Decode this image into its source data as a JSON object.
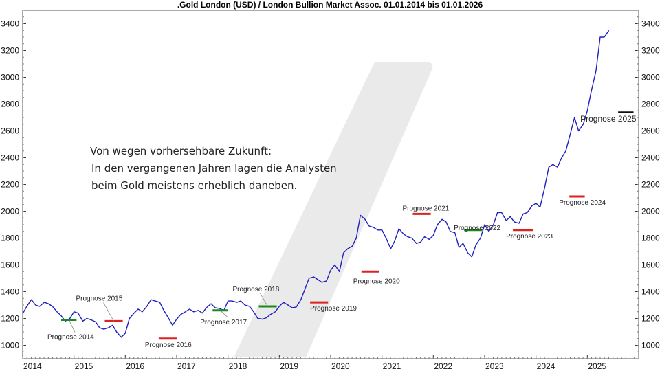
{
  "chart_data": {
    "type": "line",
    "title": ".Gold London (USD) / London Bullion Market Assoc. 01.01.2014 bis 01.01.2026",
    "ylim": [
      900,
      3500
    ],
    "xlim": [
      2014.0,
      2026.0
    ],
    "yticks": [
      1000,
      1200,
      1400,
      1600,
      1800,
      2000,
      2200,
      2400,
      2600,
      2800,
      3000,
      3200,
      3400
    ],
    "xticks": [
      "2014",
      "2015",
      "2016",
      "2017",
      "2018",
      "2019",
      "2020",
      "2021",
      "2022",
      "2023",
      "2024",
      "2025"
    ],
    "grid": false,
    "axes_on_both_sides": true,
    "colors": {
      "series": "#1f1fbf",
      "prognose_hit": "#1a8a1a",
      "prognose_miss": "#dd2222",
      "prognose_current": "#111111",
      "watermark": "#e6e6e6"
    },
    "series": [
      {
        "x": [
          2014.0,
          2014.08,
          2014.17,
          2014.25,
          2014.33,
          2014.42,
          2014.5,
          2014.58,
          2014.67,
          2014.75,
          2014.83,
          2014.92,
          2015.0,
          2015.08,
          2015.17,
          2015.25,
          2015.33,
          2015.42,
          2015.5,
          2015.58,
          2015.67,
          2015.75,
          2015.83,
          2015.92,
          2016.0,
          2016.08,
          2016.17,
          2016.25,
          2016.33,
          2016.42,
          2016.5,
          2016.58,
          2016.67,
          2016.75,
          2016.83,
          2016.92,
          2017.0,
          2017.08,
          2017.17,
          2017.25,
          2017.33,
          2017.42,
          2017.5,
          2017.58,
          2017.67,
          2017.75,
          2017.83,
          2017.92,
          2018.0,
          2018.08,
          2018.17,
          2018.25,
          2018.33,
          2018.42,
          2018.5,
          2018.58,
          2018.67,
          2018.75,
          2018.83,
          2018.92,
          2019.0,
          2019.08,
          2019.17,
          2019.25,
          2019.33,
          2019.42,
          2019.5,
          2019.58,
          2019.67,
          2019.75,
          2019.83,
          2019.92,
          2020.0,
          2020.08,
          2020.17,
          2020.25,
          2020.33,
          2020.42,
          2020.5,
          2020.58,
          2020.67,
          2020.75,
          2020.83,
          2020.92,
          2021.0,
          2021.08,
          2021.17,
          2021.25,
          2021.33,
          2021.42,
          2021.5,
          2021.58,
          2021.67,
          2021.75,
          2021.83,
          2021.92,
          2022.0,
          2022.08,
          2022.17,
          2022.25,
          2022.33,
          2022.42,
          2022.5,
          2022.58,
          2022.67,
          2022.75,
          2022.83,
          2022.92,
          2023.0,
          2023.08,
          2023.17,
          2023.25,
          2023.33,
          2023.42,
          2023.5,
          2023.58,
          2023.67,
          2023.75,
          2023.83,
          2023.92,
          2024.0,
          2024.08,
          2024.17,
          2024.25,
          2024.33,
          2024.42,
          2024.5,
          2024.58,
          2024.67,
          2024.75,
          2024.83,
          2024.92,
          2025.0,
          2025.08,
          2025.17,
          2025.25,
          2025.33,
          2025.42
        ],
        "y": [
          1235,
          1290,
          1340,
          1300,
          1290,
          1320,
          1310,
          1290,
          1250,
          1220,
          1180,
          1200,
          1250,
          1240,
          1180,
          1200,
          1190,
          1175,
          1130,
          1120,
          1130,
          1150,
          1100,
          1060,
          1090,
          1200,
          1240,
          1270,
          1250,
          1290,
          1340,
          1330,
          1320,
          1260,
          1210,
          1150,
          1195,
          1230,
          1250,
          1270,
          1250,
          1260,
          1240,
          1280,
          1310,
          1280,
          1275,
          1260,
          1330,
          1330,
          1320,
          1330,
          1300,
          1290,
          1250,
          1200,
          1195,
          1205,
          1230,
          1250,
          1290,
          1320,
          1300,
          1280,
          1285,
          1340,
          1420,
          1500,
          1510,
          1490,
          1470,
          1480,
          1560,
          1600,
          1550,
          1690,
          1720,
          1740,
          1800,
          1970,
          1940,
          1890,
          1880,
          1860,
          1860,
          1800,
          1720,
          1780,
          1870,
          1830,
          1810,
          1800,
          1760,
          1770,
          1810,
          1790,
          1820,
          1900,
          1940,
          1920,
          1850,
          1840,
          1730,
          1760,
          1690,
          1660,
          1750,
          1800,
          1900,
          1850,
          1900,
          1990,
          1990,
          1930,
          1960,
          1920,
          1910,
          1980,
          1990,
          2040,
          2060,
          2030,
          2180,
          2330,
          2350,
          2330,
          2400,
          2450,
          2580,
          2700,
          2600,
          2650,
          2750,
          2900,
          3050,
          3300,
          3300,
          3350
        ]
      }
    ],
    "annotations": [
      {
        "label": "Prognose 2014",
        "x0": 2014.75,
        "x1": 2015.05,
        "y": 1190,
        "status": "hit"
      },
      {
        "label": "Prognose 2015",
        "x0": 2015.6,
        "x1": 2015.95,
        "y": 1180,
        "status": "miss"
      },
      {
        "label": "Prognose 2016",
        "x0": 2016.65,
        "x1": 2017.0,
        "y": 1050,
        "status": "miss"
      },
      {
        "label": "Prognose 2017",
        "x0": 2017.7,
        "x1": 2018.0,
        "y": 1260,
        "status": "hit"
      },
      {
        "label": "Prognose 2018",
        "x0": 2018.6,
        "x1": 2018.95,
        "y": 1290,
        "status": "hit"
      },
      {
        "label": "Prognose 2019",
        "x0": 2019.6,
        "x1": 2019.95,
        "y": 1320,
        "status": "miss"
      },
      {
        "label": "Prognose 2020",
        "x0": 2020.6,
        "x1": 2020.95,
        "y": 1550,
        "status": "miss"
      },
      {
        "label": "Prognose 2021",
        "x0": 2021.6,
        "x1": 2021.95,
        "y": 1980,
        "status": "miss"
      },
      {
        "label": "Prognose 2022",
        "x0": 2022.6,
        "x1": 2022.95,
        "y": 1860,
        "status": "hit"
      },
      {
        "label": "Prognose 2023",
        "x0": 2023.55,
        "x1": 2023.95,
        "y": 1860,
        "status": "miss"
      },
      {
        "label": "Prognose 2024",
        "x0": 2024.65,
        "x1": 2024.95,
        "y": 2110,
        "status": "miss"
      },
      {
        "label": "Prognose 2025",
        "x0": 2025.6,
        "x1": 2025.9,
        "y": 2740,
        "status": "current"
      }
    ],
    "text_note": [
      "Von wegen vorhersehbare Zukunft:",
      "In den vergangenen Jahren lagen die Analysten",
      "beim Gold meistens erheblich daneben."
    ]
  }
}
